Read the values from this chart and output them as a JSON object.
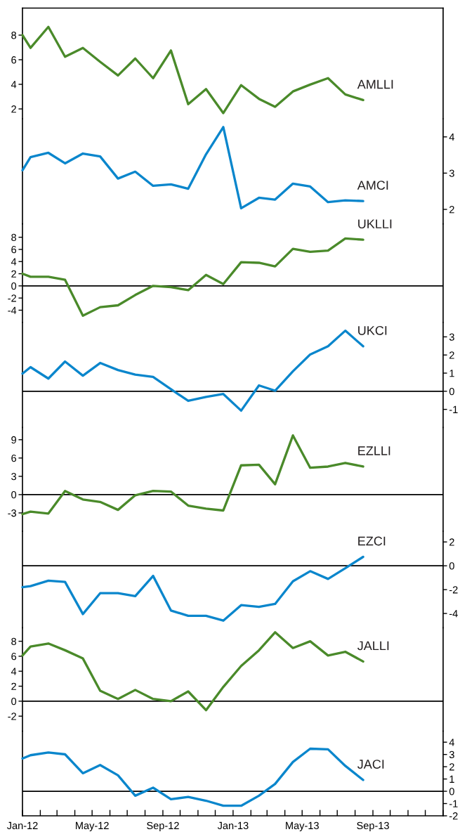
{
  "chart_data": [
    {
      "type": "line",
      "x": [
        "2012-01-01",
        "2012-01-15",
        "2012-02-15",
        "2012-03-15",
        "2012-04-15",
        "2012-05-15",
        "2012-06-15",
        "2012-07-15",
        "2012-08-15",
        "2012-09-15",
        "2012-10-15",
        "2012-11-15",
        "2012-12-15",
        "2013-01-15",
        "2013-02-15",
        "2013-03-15",
        "2013-04-15",
        "2013-05-15",
        "2013-06-15",
        "2013-07-15",
        "2013-08-15"
      ],
      "series": [
        {
          "name": "AMLLI",
          "color": "#4a8a2a",
          "values": [
            8.0,
            6.96,
            8.67,
            6.24,
            6.96,
            5.83,
            4.72,
            6.1,
            4.5,
            6.75,
            2.39,
            3.61,
            1.66,
            3.93,
            2.82,
            2.17,
            3.42,
            3.98,
            4.5,
            3.18,
            2.72
          ]
        }
      ],
      "xlim": [
        "2012-01-01",
        "2014-01-01"
      ],
      "ylim": [
        1.2,
        10.2
      ],
      "yticks": [
        2,
        4,
        6,
        8
      ],
      "tick_labels": "y"
    },
    {
      "type": "line",
      "x": [
        "2012-01-01",
        "2012-01-15",
        "2012-02-15",
        "2012-03-15",
        "2012-04-15",
        "2012-05-15",
        "2012-06-15",
        "2012-07-15",
        "2012-08-15",
        "2012-09-15",
        "2012-10-15",
        "2012-11-15",
        "2012-12-15",
        "2013-01-15",
        "2013-02-15",
        "2013-03-15",
        "2013-04-15",
        "2013-05-15",
        "2013-06-15",
        "2013-07-15",
        "2013-08-15"
      ],
      "series": [
        {
          "name": "AMCI",
          "color": "#0a86cc",
          "axis": "y2",
          "values": [
            3.08,
            3.44,
            3.56,
            3.27,
            3.54,
            3.46,
            2.85,
            3.04,
            2.65,
            2.69,
            2.57,
            3.52,
            4.27,
            2.03,
            2.32,
            2.27,
            2.71,
            2.63,
            2.2,
            2.25,
            2.23
          ]
        }
      ],
      "xlim": [
        "2012-01-01",
        "2014-01-01"
      ],
      "y2lim": [
        1.6,
        4.5
      ],
      "y2ticks": [
        2,
        3,
        4
      ],
      "tick_labels": "y2"
    },
    {
      "type": "line",
      "x": [
        "2012-01-01",
        "2012-01-15",
        "2012-02-15",
        "2012-03-15",
        "2012-04-15",
        "2012-05-15",
        "2012-06-15",
        "2012-07-15",
        "2012-08-15",
        "2012-09-15",
        "2012-10-15",
        "2012-11-15",
        "2012-12-15",
        "2013-01-15",
        "2013-02-15",
        "2013-03-15",
        "2013-04-15",
        "2013-05-15",
        "2013-06-15",
        "2013-07-15",
        "2013-08-15"
      ],
      "series": [
        {
          "name": "UKLLI",
          "color": "#4a8a2a",
          "values": [
            2.0,
            1.5,
            1.5,
            1.0,
            -4.9,
            -3.5,
            -3.2,
            -1.5,
            0.0,
            -0.2,
            -0.7,
            1.8,
            0.3,
            3.9,
            3.8,
            3.2,
            6.1,
            5.6,
            5.8,
            7.8,
            7.6
          ]
        }
      ],
      "xlim": [
        "2012-01-01",
        "2014-01-01"
      ],
      "ylim": [
        -6,
        10.2
      ],
      "yticks": [
        {
          "value": -4,
          "label": "-4"
        },
        {
          "value": -2,
          "label": "-2"
        },
        0,
        2,
        4,
        6,
        8
      ],
      "ref_lines": [
        {
          "axis": "y",
          "value": 0
        }
      ],
      "tick_labels": "y"
    },
    {
      "type": "line",
      "x": [
        "2012-01-01",
        "2012-01-15",
        "2012-02-15",
        "2012-03-15",
        "2012-04-15",
        "2012-05-15",
        "2012-06-15",
        "2012-07-15",
        "2012-08-15",
        "2012-09-15",
        "2012-10-15",
        "2012-11-15",
        "2012-12-15",
        "2013-01-15",
        "2013-02-15",
        "2013-03-15",
        "2013-04-15",
        "2013-05-15",
        "2013-06-15",
        "2013-07-15",
        "2013-08-15"
      ],
      "series": [
        {
          "name": "UKCI",
          "color": "#0a86cc",
          "axis": "y2",
          "values": [
            0.97,
            1.33,
            0.7,
            1.64,
            0.86,
            1.56,
            1.17,
            0.92,
            0.79,
            0.11,
            -0.53,
            -0.31,
            -0.15,
            -1.07,
            0.32,
            0.03,
            1.1,
            2.03,
            2.48,
            3.34,
            2.48
          ]
        }
      ],
      "xlim": [
        "2012-01-01",
        "2014-01-01"
      ],
      "y2lim": [
        -2,
        3.8
      ],
      "y2ticks": [
        {
          "value": -1,
          "label": "-1"
        },
        0,
        1,
        2,
        3
      ],
      "ref_lines": [
        {
          "axis": "y2",
          "value": 0
        }
      ],
      "tick_labels": "y2"
    },
    {
      "type": "line",
      "x": [
        "2012-01-01",
        "2012-01-15",
        "2012-02-15",
        "2012-03-15",
        "2012-04-15",
        "2012-05-15",
        "2012-06-15",
        "2012-07-15",
        "2012-08-15",
        "2012-09-15",
        "2012-10-15",
        "2012-11-15",
        "2012-12-15",
        "2013-01-15",
        "2013-02-15",
        "2013-03-15",
        "2013-04-15",
        "2013-05-15",
        "2013-06-15",
        "2013-07-15",
        "2013-08-15"
      ],
      "series": [
        {
          "name": "EZLLI",
          "color": "#4a8a2a",
          "values": [
            -3.2,
            -2.8,
            -3.1,
            0.6,
            -0.8,
            -1.2,
            -2.5,
            -0.1,
            0.6,
            0.5,
            -1.8,
            -2.3,
            -2.6,
            4.8,
            4.9,
            1.7,
            9.7,
            4.4,
            4.6,
            5.2,
            4.6
          ]
        }
      ],
      "xlim": [
        "2012-01-01",
        "2014-01-01"
      ],
      "ylim": [
        -6,
        11
      ],
      "yticks": [
        {
          "value": -3,
          "label": "-3"
        },
        0,
        3,
        6,
        9
      ],
      "ref_lines": [
        {
          "axis": "y",
          "value": 0
        }
      ],
      "tick_labels": "y"
    },
    {
      "type": "line",
      "x": [
        "2012-01-01",
        "2012-01-15",
        "2012-02-15",
        "2012-03-15",
        "2012-04-15",
        "2012-05-15",
        "2012-06-15",
        "2012-07-15",
        "2012-08-15",
        "2012-09-15",
        "2012-10-15",
        "2012-11-15",
        "2012-12-15",
        "2013-01-15",
        "2013-02-15",
        "2013-03-15",
        "2013-04-15",
        "2013-05-15",
        "2013-06-15",
        "2013-07-15",
        "2013-08-15"
      ],
      "series": [
        {
          "name": "EZCI",
          "color": "#0a86cc",
          "axis": "y2",
          "values": [
            -1.8,
            -1.7,
            -1.25,
            -1.35,
            -4.05,
            -2.3,
            -2.3,
            -2.55,
            -0.85,
            -3.75,
            -4.2,
            -4.2,
            -4.6,
            -3.3,
            -3.45,
            -3.2,
            -1.3,
            -0.45,
            -1.1,
            -0.2,
            0.75
          ]
        }
      ],
      "xlim": [
        "2012-01-01",
        "2014-01-01"
      ],
      "y2lim": [
        -5.2,
        2.9
      ],
      "y2ticks": [
        {
          "value": -4,
          "label": "-4"
        },
        {
          "value": -2,
          "label": "-2"
        },
        0,
        2
      ],
      "ref_lines": [
        {
          "axis": "y2",
          "value": 0
        }
      ],
      "tick_labels": "y2"
    },
    {
      "type": "line",
      "x": [
        "2012-01-01",
        "2012-01-15",
        "2012-02-15",
        "2012-03-15",
        "2012-04-15",
        "2012-05-15",
        "2012-06-15",
        "2012-07-15",
        "2012-08-15",
        "2012-09-15",
        "2012-10-15",
        "2012-11-15",
        "2012-12-15",
        "2013-01-15",
        "2013-02-15",
        "2013-03-15",
        "2013-04-15",
        "2013-05-15",
        "2013-06-15",
        "2013-07-15",
        "2013-08-15"
      ],
      "series": [
        {
          "name": "JALLI",
          "color": "#4a8a2a",
          "values": [
            6.1,
            7.3,
            7.7,
            6.8,
            5.7,
            1.4,
            0.3,
            1.5,
            0.3,
            0.0,
            1.3,
            -1.2,
            1.9,
            4.7,
            6.8,
            9.2,
            7.1,
            8.0,
            6.1,
            6.6,
            5.3
          ]
        }
      ],
      "xlim": [
        "2012-01-01",
        "2014-01-01"
      ],
      "ylim": [
        -4,
        9.8
      ],
      "yticks": [
        {
          "value": -2,
          "label": "-2"
        },
        0,
        2,
        4,
        6,
        8
      ],
      "ref_lines": [
        {
          "axis": "y",
          "value": 0
        }
      ],
      "tick_labels": "y"
    },
    {
      "type": "line",
      "x": [
        "2012-01-01",
        "2012-01-15",
        "2012-02-15",
        "2012-03-15",
        "2012-04-15",
        "2012-05-15",
        "2012-06-15",
        "2012-07-15",
        "2012-08-15",
        "2012-09-15",
        "2012-10-15",
        "2012-11-15",
        "2012-12-15",
        "2013-01-15",
        "2013-02-15",
        "2013-03-15",
        "2013-04-15",
        "2013-05-15",
        "2013-06-15",
        "2013-07-15",
        "2013-08-15"
      ],
      "series": [
        {
          "name": "JACI",
          "color": "#0a86cc",
          "axis": "y2",
          "values": [
            2.67,
            2.94,
            3.16,
            3.01,
            1.47,
            2.14,
            1.3,
            -0.36,
            0.29,
            -0.65,
            -0.46,
            -0.77,
            -1.18,
            -1.18,
            -0.36,
            0.6,
            2.39,
            3.47,
            3.42,
            2.07,
            0.92
          ]
        }
      ],
      "xlim": [
        "2012-01-01",
        "2014-01-01"
      ],
      "y2lim": [
        -2,
        4.9
      ],
      "y2ticks": [
        {
          "value": -2,
          "label": "-2"
        },
        {
          "value": -1,
          "label": "-1"
        },
        0,
        1,
        2,
        3,
        4
      ],
      "ref_lines": [
        {
          "axis": "y2",
          "value": 0
        }
      ],
      "xticks": [
        {
          "value": "2012-01-01",
          "label": "Jan-12"
        },
        {
          "value": "2012-02-01",
          "label": null
        },
        {
          "value": "2012-03-01",
          "label": null
        },
        {
          "value": "2012-04-01",
          "label": null
        },
        {
          "value": "2012-05-01",
          "label": "May-12"
        },
        {
          "value": "2012-06-01",
          "label": null
        },
        {
          "value": "2012-07-01",
          "label": null
        },
        {
          "value": "2012-08-01",
          "label": null
        },
        {
          "value": "2012-09-01",
          "label": "Sep-12"
        },
        {
          "value": "2012-10-01",
          "label": null
        },
        {
          "value": "2012-11-01",
          "label": null
        },
        {
          "value": "2012-12-01",
          "label": null
        },
        {
          "value": "2013-01-01",
          "label": "Jan-13"
        },
        {
          "value": "2013-02-01",
          "label": null
        },
        {
          "value": "2013-03-01",
          "label": null
        },
        {
          "value": "2013-04-01",
          "label": null
        },
        {
          "value": "2013-05-01",
          "label": "May-13"
        },
        {
          "value": "2013-06-01",
          "label": null
        },
        {
          "value": "2013-07-01",
          "label": null
        },
        {
          "value": "2013-08-01",
          "label": null
        },
        {
          "value": "2013-09-01",
          "label": "Sep-13"
        },
        {
          "value": "2013-10-01",
          "label": null
        },
        {
          "value": "2013-11-01",
          "label": null
        },
        {
          "value": "2013-12-01",
          "label": null
        },
        {
          "value": "2014-01-01",
          "label": null
        }
      ]
    }
  ]
}
